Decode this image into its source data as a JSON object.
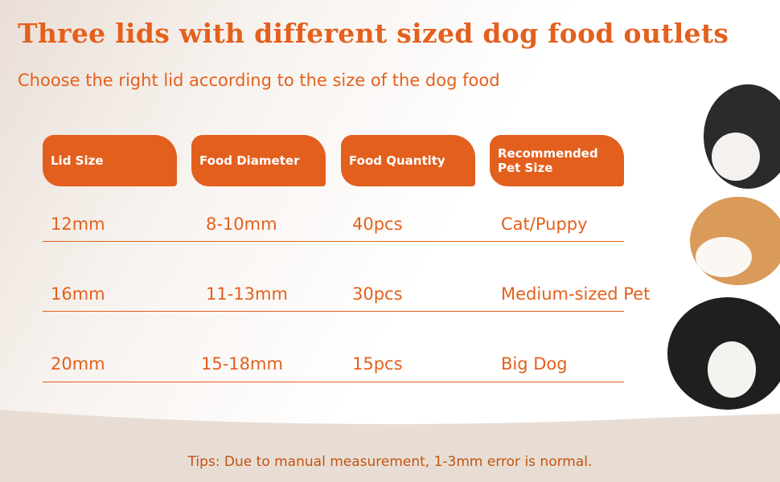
{
  "header": {
    "title": "Three lids with different sized dog food outlets",
    "subtitle": "Choose the right lid according to the size of the dog food"
  },
  "table": {
    "columns": [
      "Lid Size",
      "Food Diameter",
      "Food Quantity",
      "Recommended Pet Size"
    ],
    "rows": [
      [
        "12mm",
        "8-10mm",
        "40pcs",
        "Cat/Puppy"
      ],
      [
        "16mm",
        "11-13mm",
        "30pcs",
        "Medium-sized Pet"
      ],
      [
        "20mm",
        "15-18mm",
        "15pcs",
        "Big Dog"
      ]
    ]
  },
  "footer": {
    "tips": "Tips: Due to manual measurement, 1-3mm error is normal."
  }
}
